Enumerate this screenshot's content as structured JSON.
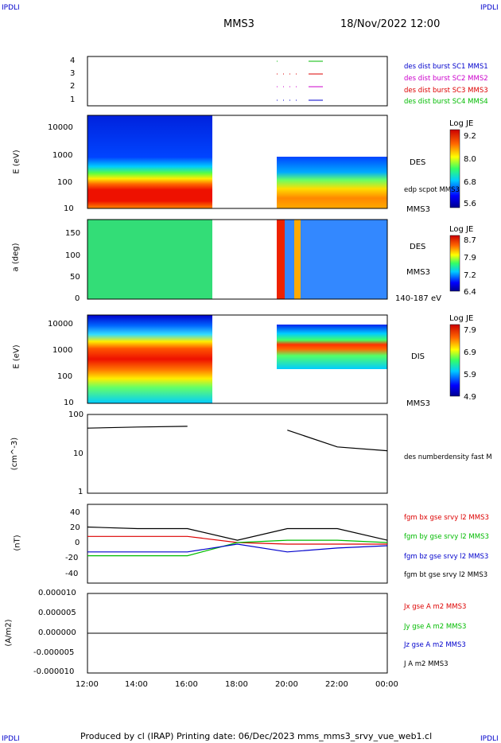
{
  "corners": {
    "tl": "IPDLI",
    "tr": "IPDLI",
    "bl": "IPDLI",
    "br": "IPDLI"
  },
  "header": {
    "spacecraft": "MMS3",
    "datetime": "18/Nov/2022 12:00"
  },
  "footer": {
    "text": "Produced by cl (IRAP)   Printing date: 06/Dec/2023   mms_mms3_srvy_vue_web1.cl"
  },
  "x_ticks": [
    "12:00",
    "14:00",
    "16:00",
    "18:00",
    "20:00",
    "22:00",
    "00:00"
  ],
  "panels": {
    "burst": {
      "yticks": [
        "4",
        "3",
        "2",
        "1"
      ],
      "legend": [
        {
          "text": "des dist burst SC1 MMS1",
          "color": "#0000cc"
        },
        {
          "text": "des dist burst SC2 MMS2",
          "color": "#cc00cc"
        },
        {
          "text": "des dist burst SC3 MMS3",
          "color": "#dd0000"
        },
        {
          "text": "des dist burst SC4 MMS4",
          "color": "#00bb00"
        }
      ]
    },
    "des_energy": {
      "ylabel": "E (eV)",
      "yticks": [
        "10000",
        "1000",
        "100",
        "10"
      ],
      "label": "DES",
      "sublabel": "MMS3",
      "overlay": "edp scpot MMS3",
      "colorbar": {
        "title": "Log JE",
        "ticks": [
          "9.2",
          "8.0",
          "6.8",
          "5.6"
        ]
      }
    },
    "des_pitch": {
      "ylabel": "a (deg)",
      "yticks": [
        "150",
        "100",
        "50",
        "0"
      ],
      "label": "DES",
      "sublabel": "MMS3",
      "range": "140-187 eV",
      "colorbar": {
        "title": "Log JE",
        "ticks": [
          "8.7",
          "7.9",
          "7.2",
          "6.4"
        ]
      }
    },
    "dis_energy": {
      "ylabel": "E (eV)",
      "yticks": [
        "10000",
        "1000",
        "100",
        "10"
      ],
      "label": "DIS",
      "sublabel": "MMS3",
      "colorbar": {
        "title": "Log JE",
        "ticks": [
          "7.9",
          "6.9",
          "5.9",
          "4.9"
        ]
      }
    },
    "density": {
      "ylabel": "(cm^-3)",
      "yticks": [
        "100",
        "10",
        "1"
      ],
      "legend": "des numberdensity fast M"
    },
    "bfield": {
      "ylabel": "(nT)",
      "yticks": [
        "40",
        "20",
        "0",
        "-20",
        "-40"
      ],
      "legend": [
        {
          "text": "fgm bx gse srvy l2 MMS3",
          "color": "#dd0000"
        },
        {
          "text": "fgm by gse srvy l2 MMS3",
          "color": "#00bb00"
        },
        {
          "text": "fgm bz gse srvy l2 MMS3",
          "color": "#0000cc"
        },
        {
          "text": "fgm bt gse srvy l2 MMS3",
          "color": "#000000"
        }
      ]
    },
    "current": {
      "ylabel": "(A/m2)",
      "yticks": [
        "0.000010",
        "0.000005",
        "0.000000",
        "-0.000005",
        "-0.000010"
      ],
      "legend": [
        {
          "text": "Jx gse A m2 MMS3",
          "color": "#dd0000"
        },
        {
          "text": "Jy gse A m2 MMS3",
          "color": "#00bb00"
        },
        {
          "text": "Jz gse A m2 MMS3",
          "color": "#0000cc"
        },
        {
          "text": "J A m2 MMS3",
          "color": "#000000"
        }
      ]
    }
  },
  "chart_data": {
    "type": "line",
    "x": [
      "12:00",
      "14:00",
      "16:00",
      "18:00",
      "20:00",
      "22:00",
      "00:00"
    ],
    "series": [
      {
        "name": "des numberdensity fast M",
        "values": [
          45,
          48,
          50,
          null,
          40,
          15,
          12
        ]
      },
      {
        "name": "fgm bx gse srvy l2 MMS3",
        "values": [
          10,
          10,
          10,
          2,
          0,
          0,
          0
        ]
      },
      {
        "name": "fgm by gse srvy l2 MMS3",
        "values": [
          -15,
          -15,
          -15,
          2,
          5,
          5,
          2
        ]
      },
      {
        "name": "fgm bz gse srvy l2 MMS3",
        "values": [
          -10,
          -10,
          -10,
          0,
          -10,
          -5,
          -2
        ]
      },
      {
        "name": "fgm bt gse srvy l2 MMS3",
        "values": [
          22,
          20,
          20,
          5,
          20,
          20,
          5
        ]
      }
    ]
  }
}
